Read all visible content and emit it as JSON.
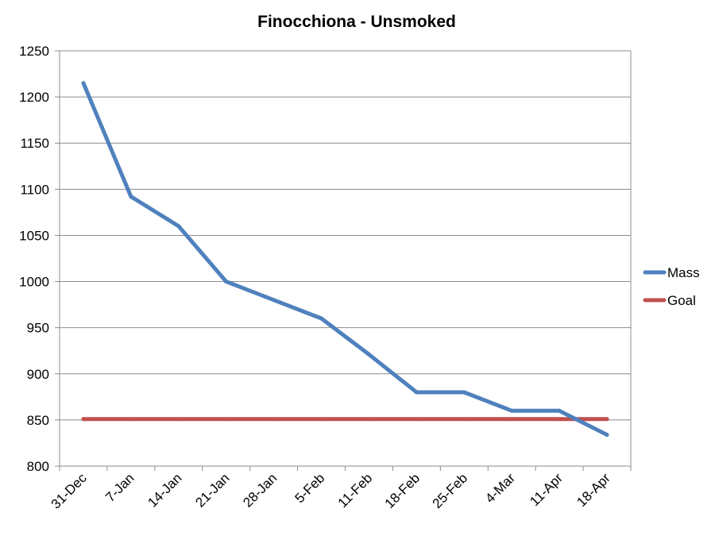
{
  "chart_data": {
    "type": "line",
    "title": "Finocchiona - Unsmoked",
    "xlabel": "",
    "ylabel": "",
    "categories": [
      "31-Dec",
      "7-Jan",
      "14-Jan",
      "21-Jan",
      "28-Jan",
      "5-Feb",
      "11-Feb",
      "18-Feb",
      "25-Feb",
      "4-Mar",
      "11-Apr",
      "18-Apr"
    ],
    "ylim": [
      800,
      1250
    ],
    "yticks": [
      800,
      850,
      900,
      950,
      1000,
      1050,
      1100,
      1150,
      1200,
      1250
    ],
    "grid": true,
    "legend_position": "right",
    "series": [
      {
        "name": "Mass",
        "color": "#4f81bd",
        "values": [
          1215,
          1092,
          1060,
          1000,
          980,
          960,
          921,
          880,
          880,
          860,
          860,
          834
        ]
      },
      {
        "name": "Goal",
        "color": "#c0504d",
        "values": [
          851,
          851,
          851,
          851,
          851,
          851,
          851,
          851,
          851,
          851,
          851,
          851
        ]
      }
    ]
  }
}
